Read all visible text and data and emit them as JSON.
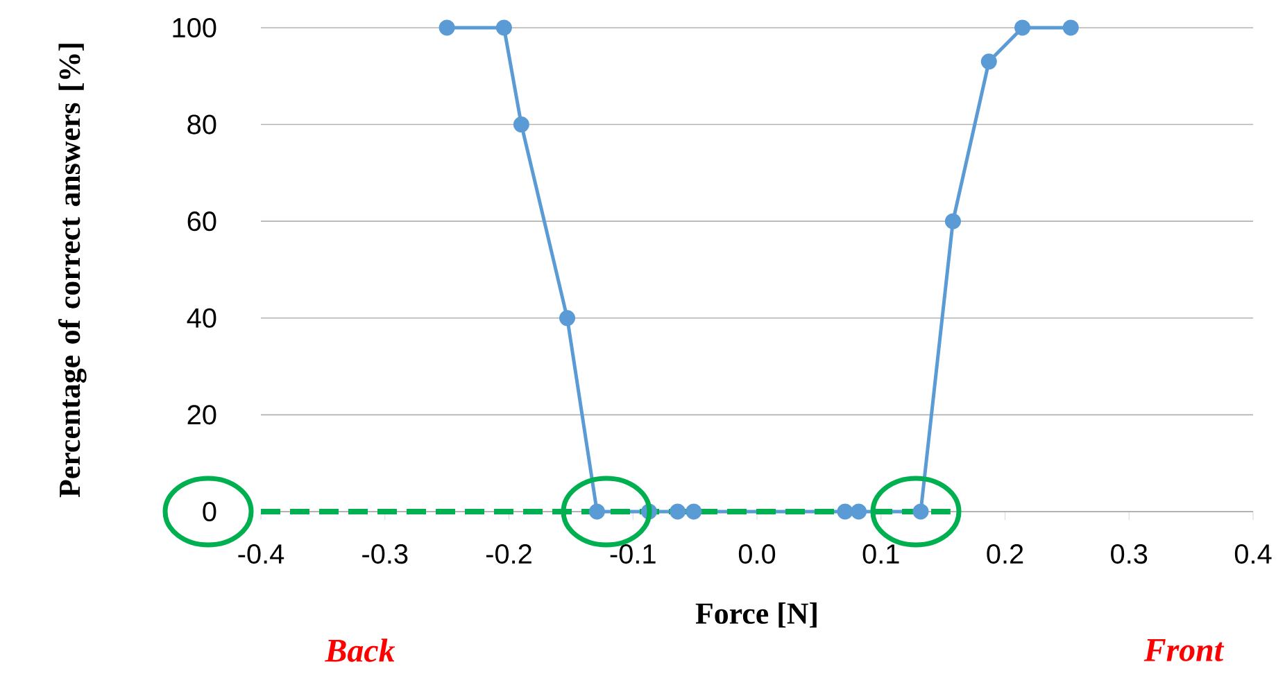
{
  "chart_data": {
    "type": "line",
    "xlabel": "Force [N]",
    "ylabel": "Percentage of correct answers [%]",
    "annotations": [
      "Back",
      "Front"
    ],
    "xlim": [
      -0.4,
      0.4
    ],
    "ylim": [
      0,
      100
    ],
    "xticks": [
      -0.4,
      -0.3,
      -0.2,
      -0.1,
      {
        "value": 0,
        "label": "0.0"
      },
      0.1,
      0.2,
      0.3,
      0.4
    ],
    "yticks": [
      0,
      20,
      40,
      60,
      80,
      100
    ],
    "grid": "y",
    "series": [
      {
        "color": "#5b9bd5",
        "marker": "circle",
        "line_style": "solid",
        "x": [
          -0.25,
          -0.204,
          -0.19,
          -0.153,
          -0.129,
          -0.087,
          -0.064,
          -0.051,
          0.071,
          0.082,
          0.132,
          0.158,
          0.187,
          0.214,
          0.253
        ],
        "values": [
          100,
          100,
          80,
          40,
          0,
          0,
          0,
          0,
          0,
          0,
          0,
          60,
          93,
          100,
          100
        ]
      },
      {
        "color": "#00b050",
        "marker": "none",
        "line_style": "dashed",
        "x": [
          -0.4,
          0.156
        ],
        "values": [
          0,
          0
        ]
      }
    ]
  }
}
